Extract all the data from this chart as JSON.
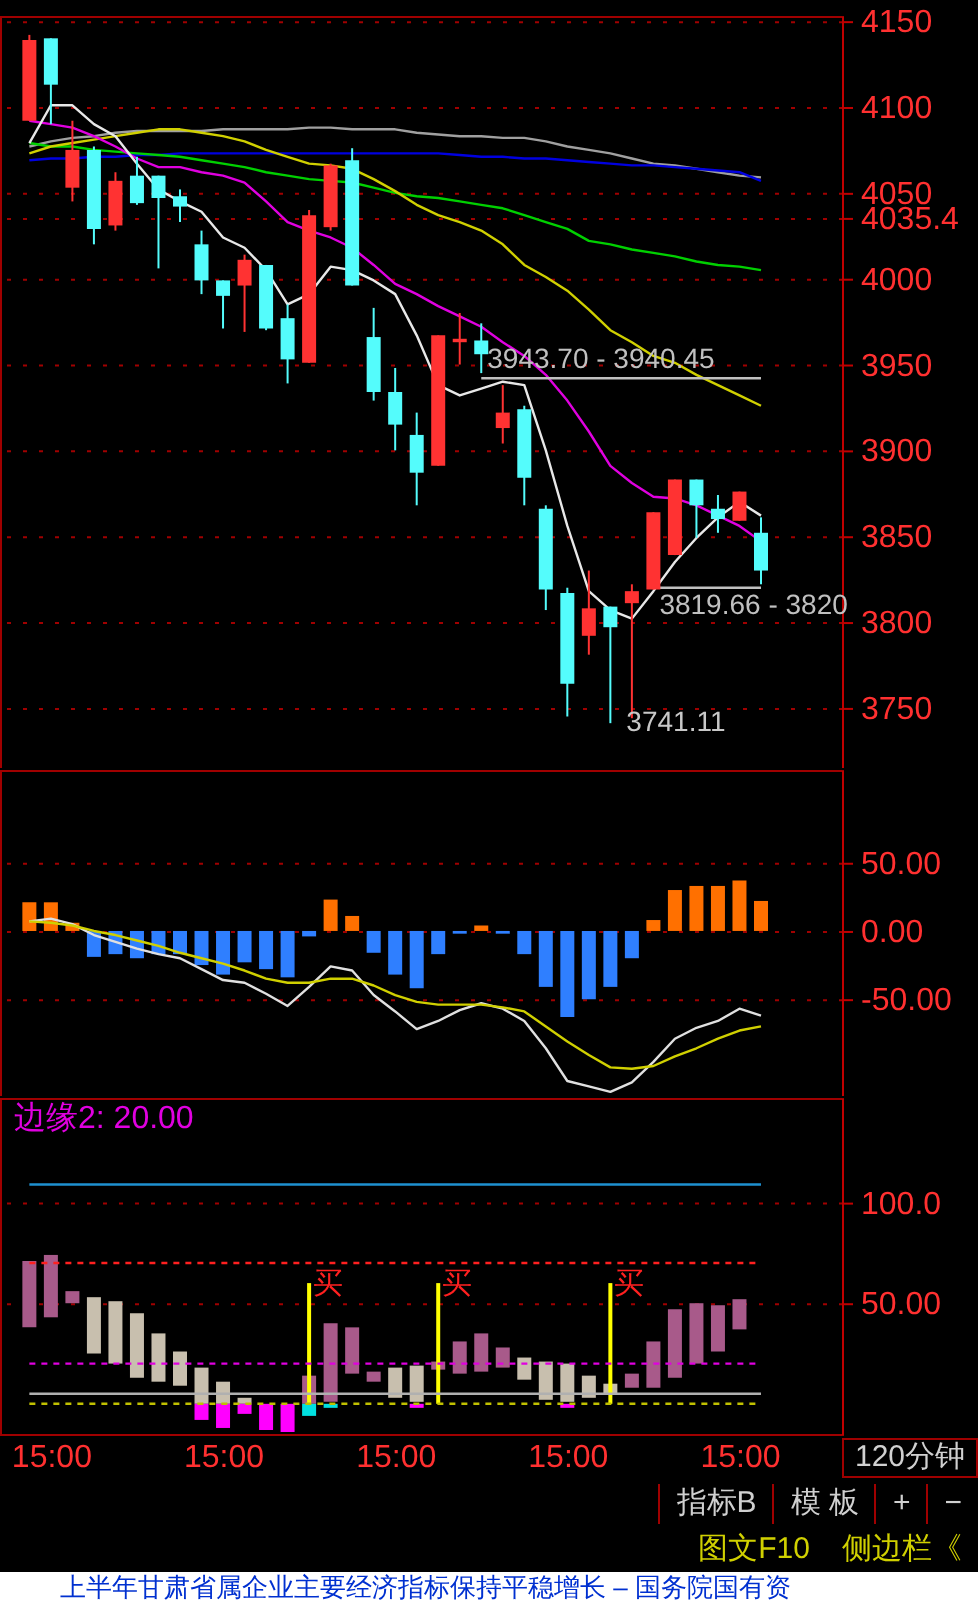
{
  "chart_data": [
    {
      "type": "candlestick",
      "categories": [
        null,
        null,
        null,
        null,
        null,
        null,
        null,
        null,
        null,
        null,
        null,
        null,
        null,
        null,
        null,
        null,
        null,
        null,
        null,
        null,
        null,
        null,
        null,
        null,
        null,
        null,
        null,
        null,
        null,
        null,
        null,
        null,
        null,
        null,
        null
      ],
      "ohlc": [
        [
          4092,
          4142,
          4092,
          4139
        ],
        [
          4140,
          4140,
          4090,
          4113
        ],
        [
          4053,
          4092,
          4045,
          4075
        ],
        [
          4075,
          4077,
          4020,
          4029
        ],
        [
          4031,
          4062,
          4028,
          4057
        ],
        [
          4060,
          4071,
          4043,
          4044
        ],
        [
          4060,
          4060,
          4006,
          4047
        ],
        [
          4048,
          4052,
          4033,
          4042
        ],
        [
          4020,
          4028,
          3991,
          3999
        ],
        [
          3999,
          3999,
          3971,
          3990
        ],
        [
          3996,
          4014,
          3969,
          4011
        ],
        [
          4008,
          4008,
          3970,
          3971
        ],
        [
          3977,
          3985,
          3939,
          3953
        ],
        [
          3951,
          4040,
          3951,
          4037
        ],
        [
          4030,
          4067,
          4028,
          4066
        ],
        [
          4069,
          4076,
          3996,
          3996
        ],
        [
          3966,
          3983,
          3929,
          3934
        ],
        [
          3934,
          3948,
          3900,
          3915
        ],
        [
          3909,
          3922,
          3868,
          3887
        ],
        [
          3891,
          3967,
          3891,
          3967
        ],
        [
          3963,
          3980,
          3950,
          3965
        ],
        [
          3964,
          3974,
          3945,
          3956
        ],
        [
          3913,
          3938,
          3904,
          3922
        ],
        [
          3924,
          3926,
          3868,
          3884
        ],
        [
          3866,
          3868,
          3807,
          3819
        ],
        [
          3817,
          3820,
          3745,
          3764
        ],
        [
          3792,
          3830,
          3781,
          3808
        ],
        [
          3809,
          3809,
          3741.11,
          3797
        ],
        [
          3811,
          3822,
          3744,
          3818
        ],
        [
          3819,
          3864,
          3819,
          3864
        ],
        [
          3839,
          3883,
          3839,
          3883
        ],
        [
          3883,
          3883,
          3849,
          3868
        ],
        [
          3866,
          3874,
          3852,
          3860
        ],
        [
          3859,
          3876,
          3859,
          3876
        ],
        [
          3852,
          3861,
          3822,
          3830
        ]
      ],
      "colors": [
        "#ff3232",
        "#54fcfc",
        "#ff3232",
        "#54fcfc",
        "#ff3232",
        "#54fcfc",
        "#54fcfc",
        "#54fcfc",
        "#54fcfc",
        "#54fcfc",
        "#ff3232",
        "#54fcfc",
        "#54fcfc",
        "#ff3232",
        "#ff3232",
        "#54fcfc",
        "#54fcfc",
        "#54fcfc",
        "#54fcfc",
        "#ff3232",
        "#ff3232",
        "#54fcfc",
        "#ff3232",
        "#54fcfc",
        "#54fcfc",
        "#54fcfc",
        "#ff3232",
        "#54fcfc",
        "#ff3232",
        "#ff3232",
        "#ff3232",
        "#54fcfc",
        "#54fcfc",
        "#ff3232",
        "#54fcfc"
      ],
      "series": [
        {
          "type": "line",
          "color": "#a0a0a0",
          "values": [
            4077,
            4080,
            4082,
            4083,
            4085,
            4086,
            4086,
            4086,
            4086,
            4087,
            4087,
            4087,
            4087,
            4088,
            4088,
            4087,
            4087,
            4087,
            4085,
            4084,
            4083,
            4083,
            4082,
            4082,
            4080,
            4077,
            4075,
            4073,
            4070,
            4067,
            4066,
            4064,
            4062,
            4060,
            4059
          ]
        },
        {
          "type": "line",
          "color": "#0000e0",
          "values": [
            4069,
            4070,
            4070,
            4071,
            4071,
            4072,
            4072,
            4073,
            4073,
            4073,
            4073,
            4073,
            4073,
            4073,
            4073,
            4073,
            4073,
            4073,
            4073,
            4073,
            4072,
            4071,
            4071,
            4070,
            4070,
            4069,
            4068,
            4067,
            4066,
            4066,
            4065,
            4064,
            4063,
            4062,
            4057
          ]
        },
        {
          "type": "line",
          "color": "#00d000",
          "values": [
            4079,
            4077,
            4077,
            4075,
            4074,
            4073,
            4072,
            4071,
            4069,
            4067,
            4065,
            4062,
            4060,
            4058,
            4057,
            4056,
            4053,
            4050,
            4048,
            4047,
            4045,
            4043,
            4041,
            4037,
            4033,
            4029,
            4022,
            4020,
            4017,
            4015,
            4013,
            4010,
            4008,
            4007,
            4005
          ]
        },
        {
          "type": "line",
          "color": "#d0d000",
          "values": [
            4073,
            4077,
            4079,
            4081,
            4083,
            4085,
            4087,
            4087,
            4085,
            4083,
            4080,
            4075,
            4071,
            4067,
            4066,
            4064,
            4058,
            4051,
            4043,
            4037,
            4033,
            4028,
            4020,
            4008,
            4001,
            3993,
            3982,
            3970,
            3963,
            3955,
            3951,
            3944,
            3938,
            3932,
            3926
          ]
        },
        {
          "type": "line",
          "color": "#e000e0",
          "values": [
            4092,
            4090,
            4088,
            4083,
            4077,
            4070,
            4065,
            4065,
            4062,
            4060,
            4056,
            4045,
            4033,
            4028,
            4024,
            4018,
            4008,
            3997,
            3991,
            3984,
            3978,
            3972,
            3963,
            3955,
            3944,
            3929,
            3911,
            3891,
            3881,
            3873,
            3872,
            3868,
            3862,
            3856,
            3847
          ]
        },
        {
          "type": "line",
          "color": "#e8e8e8",
          "values": [
            4079,
            4101,
            4101,
            4090,
            4083,
            4067,
            4052,
            4045,
            4039,
            4024,
            4018,
            4005,
            3985,
            3991,
            4007,
            4005,
            3999,
            3991,
            3967,
            3938,
            3932,
            3936,
            3940,
            3938,
            3900,
            3856,
            3818,
            3807,
            3802,
            3818,
            3835,
            3849,
            3861,
            3870,
            3862
          ]
        },
        {
          "type": "line",
          "color": "#c0c0c0",
          "name": "3943.70 - 3940.45",
          "values": [
            null,
            null,
            null,
            null,
            null,
            null,
            null,
            null,
            null,
            null,
            null,
            null,
            null,
            null,
            null,
            null,
            null,
            null,
            null,
            null,
            null,
            3942,
            3942,
            3942,
            3942,
            3942,
            3942,
            3942,
            3942,
            3942,
            3942,
            3942,
            3942,
            3942,
            3942
          ]
        },
        {
          "type": "line",
          "color": "#c0c0c0",
          "name": "3819.66 - 3820",
          "values": [
            null,
            null,
            null,
            null,
            null,
            null,
            null,
            null,
            null,
            null,
            null,
            null,
            null,
            null,
            null,
            null,
            null,
            null,
            null,
            null,
            null,
            null,
            null,
            null,
            null,
            null,
            null,
            null,
            null,
            3820,
            3820,
            3820,
            3820,
            3820,
            3820
          ]
        }
      ],
      "ylim": [
        3715,
        4153
      ],
      "yticks": [
        3750,
        3800,
        3850,
        3900,
        3950,
        4000,
        4035.4,
        4050,
        4100,
        4150
      ],
      "grid": "y",
      "tick_labels": "y",
      "annotations": [
        "3741.11"
      ]
    },
    {
      "type": "bar",
      "categories": [
        null,
        null,
        null,
        null,
        null,
        null,
        null,
        null,
        null,
        null,
        null,
        null,
        null,
        null,
        null,
        null,
        null,
        null,
        null,
        null,
        null,
        null,
        null,
        null,
        null,
        null,
        null,
        null,
        null,
        null,
        null,
        null,
        null,
        null,
        null
      ],
      "series": [
        {
          "type": "bar",
          "colors": [
            "#ff7000",
            "#ff7000",
            "#ff7000",
            "#2f7fff",
            "#2f7fff",
            "#2f7fff",
            "#2f7fff",
            "#2f7fff",
            "#2f7fff",
            "#2f7fff",
            "#2f7fff",
            "#2f7fff",
            "#2f7fff",
            "#2f7fff",
            "#ff7000",
            "#ff7000",
            "#2f7fff",
            "#2f7fff",
            "#2f7fff",
            "#2f7fff",
            "#2f7fff",
            "#ff7000",
            "#2f7fff",
            "#2f7fff",
            "#2f7fff",
            "#2f7fff",
            "#2f7fff",
            "#2f7fff",
            "#2f7fff",
            "#ff7000",
            "#ff7000",
            "#ff7000",
            "#ff7000",
            "#ff7000",
            "#ff7000"
          ],
          "values": [
            21,
            21,
            6,
            -19,
            -17,
            -20,
            -17,
            -17,
            -25,
            -32,
            -23,
            -28,
            -34,
            -4,
            23,
            11,
            -16,
            -32,
            -42,
            -17,
            -2,
            4,
            -2,
            -17,
            -41,
            -63,
            -50,
            -41,
            -20,
            8,
            30,
            33,
            33,
            37,
            22
          ]
        },
        {
          "type": "line",
          "color": "#e0e0e0",
          "values": [
            7,
            9,
            5,
            -3,
            -8,
            -13,
            -17,
            -20,
            -28,
            -36,
            -38,
            -46,
            -55,
            -41,
            -26,
            -29,
            -47,
            -59,
            -72,
            -66,
            -58,
            -53,
            -57,
            -66,
            -86,
            -110,
            -114,
            -118,
            -111,
            -96,
            -79,
            -71,
            -66,
            -57,
            -62
          ]
        },
        {
          "type": "line",
          "color": "#d0d000",
          "values": [
            7,
            6,
            4,
            0,
            -3,
            -7,
            -11,
            -16,
            -20,
            -24,
            -29,
            -35,
            -38,
            -38,
            -35,
            -35,
            -40,
            -47,
            -52,
            -54,
            -54,
            -54,
            -56,
            -59,
            -70,
            -81,
            -91,
            -100,
            -101,
            -99,
            -92,
            -86,
            -79,
            -73,
            -70
          ]
        }
      ],
      "ylim": [
        -121,
        118
      ],
      "yticks": [
        {
          "value": -50,
          "label": "-50.00"
        },
        {
          "value": 0,
          "label": "0.00"
        },
        {
          "value": 50,
          "label": "50.00"
        }
      ],
      "grid": "y",
      "tick_labels": "y"
    },
    {
      "type": "bar",
      "categories": [
        null,
        "15:00",
        null,
        null,
        null,
        null,
        null,
        null,
        null,
        "15:00",
        null,
        null,
        null,
        null,
        null,
        null,
        null,
        "15:00",
        null,
        null,
        null,
        null,
        null,
        null,
        null,
        "15:00",
        null,
        null,
        null,
        null,
        null,
        null,
        null,
        "15:00",
        null
      ],
      "series": [
        {
          "type": "line",
          "color": "#1e90d0",
          "values": [
            109,
            109,
            109,
            109,
            109,
            109,
            109,
            109,
            109,
            109,
            109,
            109,
            109,
            109,
            109,
            109,
            109,
            109,
            109,
            109,
            109,
            109,
            109,
            109,
            109,
            109,
            109,
            109,
            109,
            109,
            109,
            109,
            109,
            109,
            109
          ]
        },
        {
          "type": "line",
          "color": "#b0b0b0",
          "values": [
            5,
            5,
            5,
            5,
            5,
            5,
            5,
            5,
            5,
            5,
            5,
            5,
            5,
            5,
            5,
            5,
            5,
            5,
            5,
            5,
            5,
            5,
            5,
            5,
            5,
            5,
            5,
            5,
            5,
            5,
            5,
            5,
            5,
            5,
            5
          ]
        },
        {
          "type": "line",
          "color": "#ff2020",
          "line_style": "dotted",
          "values": [
            70,
            70,
            70,
            70,
            70,
            70,
            70,
            70,
            70,
            70,
            70,
            70,
            70,
            70,
            70,
            70,
            70,
            70,
            70,
            70,
            70,
            70,
            70,
            70,
            70,
            70,
            70,
            70,
            70,
            70,
            70,
            70,
            70,
            70,
            70
          ]
        },
        {
          "type": "line",
          "color": "#e000e0",
          "line_style": "dotted",
          "values": [
            20,
            20,
            20,
            20,
            20,
            20,
            20,
            20,
            20,
            20,
            20,
            20,
            20,
            20,
            20,
            20,
            20,
            20,
            20,
            20,
            20,
            20,
            20,
            20,
            20,
            20,
            20,
            20,
            20,
            20,
            20,
            20,
            20,
            20,
            20
          ]
        },
        {
          "type": "line",
          "color": "#c0c000",
          "line_style": "dotted",
          "values": [
            0,
            0,
            0,
            0,
            0,
            0,
            0,
            0,
            0,
            0,
            0,
            0,
            0,
            0,
            0,
            0,
            0,
            0,
            0,
            0,
            0,
            0,
            0,
            0,
            0,
            0,
            0,
            0,
            0,
            0,
            0,
            0,
            0,
            0,
            0
          ]
        },
        {
          "type": "bar",
          "color": "#a85a8a",
          "base": [
            38,
            43,
            50,
            null,
            null,
            null,
            null,
            null,
            null,
            null,
            null,
            null,
            null,
            0,
            1,
            15,
            11,
            null,
            null,
            17,
            15,
            16,
            18,
            null,
            null,
            null,
            null,
            null,
            8,
            8,
            13,
            20,
            26,
            37,
            null
          ],
          "values": [
            33,
            31,
            6,
            null,
            null,
            null,
            null,
            null,
            null,
            null,
            null,
            null,
            null,
            14,
            39,
            23,
            5,
            null,
            null,
            4,
            16,
            19,
            10,
            null,
            null,
            null,
            null,
            null,
            7,
            23,
            34,
            30,
            23,
            15,
            null
          ]
        },
        {
          "type": "bar",
          "color": "#c8bfae",
          "base": [
            null,
            null,
            null,
            25,
            20,
            13,
            11,
            9,
            0,
            0,
            0,
            null,
            null,
            null,
            null,
            null,
            null,
            3,
            1,
            null,
            null,
            null,
            null,
            12,
            2,
            1,
            3,
            5,
            null,
            null,
            null,
            null,
            null,
            null,
            null
          ],
          "values": [
            null,
            null,
            null,
            28,
            31,
            32,
            24,
            17,
            18,
            11,
            3,
            null,
            null,
            null,
            null,
            null,
            null,
            15,
            18,
            null,
            null,
            null,
            null,
            11,
            19,
            19,
            11,
            5,
            null,
            null,
            null,
            null,
            null,
            null,
            null
          ]
        },
        {
          "type": "bar",
          "colors": [
            null,
            null,
            null,
            null,
            null,
            null,
            null,
            null,
            "#ff00ff",
            "#ff00ff",
            "#ff00ff",
            "#ff00ff",
            "#ff00ff",
            "#00e0e0",
            "#00e0e0",
            null,
            null,
            null,
            "#ff00ff",
            null,
            null,
            null,
            null,
            null,
            null,
            "#ff00ff",
            null,
            null,
            null,
            null,
            null,
            null,
            null,
            null,
            null
          ],
          "values": [
            null,
            null,
            null,
            null,
            null,
            null,
            null,
            null,
            -8,
            -12,
            -5,
            -13,
            -14,
            -6,
            -2,
            null,
            null,
            null,
            -2,
            null,
            null,
            null,
            null,
            null,
            null,
            -2,
            null,
            null,
            null,
            null,
            null,
            null,
            null,
            null,
            null
          ]
        },
        {
          "type": "bar",
          "color": "#ffff00",
          "values": [
            null,
            null,
            null,
            null,
            null,
            null,
            null,
            null,
            null,
            null,
            null,
            null,
            null,
            60,
            null,
            null,
            null,
            null,
            null,
            60,
            null,
            null,
            null,
            null,
            null,
            null,
            null,
            60,
            null,
            null,
            null,
            null,
            null,
            null,
            null
          ],
          "value_labels": [
            null,
            null,
            null,
            null,
            null,
            null,
            null,
            null,
            null,
            null,
            null,
            null,
            null,
            "买",
            null,
            null,
            null,
            null,
            null,
            "买",
            null,
            null,
            null,
            null,
            null,
            null,
            null,
            "买",
            null,
            null,
            null,
            null,
            null,
            null,
            null
          ]
        }
      ],
      "ylim": [
        -15,
        152
      ],
      "yticks": [
        {
          "value": 50,
          "label": "50.00"
        },
        {
          "value": 100,
          "label": "100.0"
        }
      ],
      "grid": "y",
      "annotations": [
        "边缘2: 20.00",
        "120分钟",
        "指标B",
        "模 板",
        "+",
        "−",
        "图文F10",
        "侧边栏《",
        "上半年甘肃省属企业主要经济指标保持平稳增长 – 国务院国有资"
      ]
    }
  ]
}
